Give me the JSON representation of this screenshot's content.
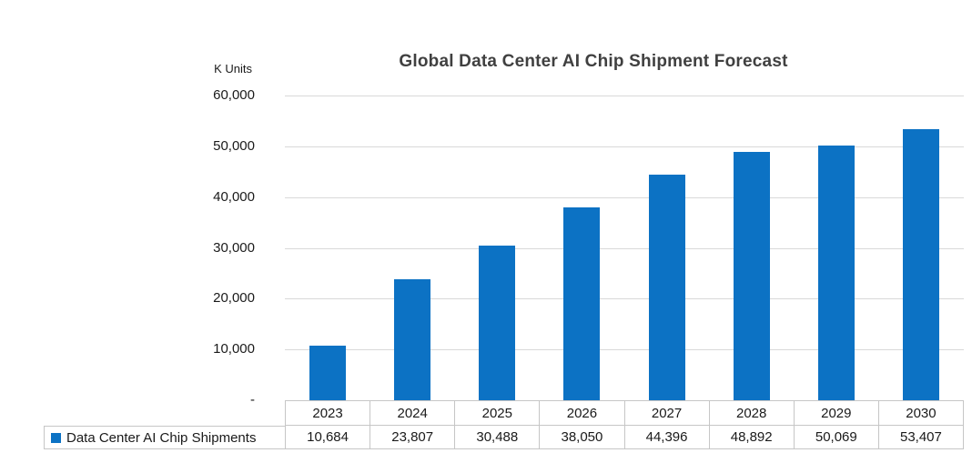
{
  "chart_data": {
    "type": "bar",
    "title": "Global Data Center AI Chip Shipment Forecast",
    "y_unit_label": "K Units",
    "categories": [
      "2023",
      "2024",
      "2025",
      "2026",
      "2027",
      "2028",
      "2029",
      "2030"
    ],
    "series": [
      {
        "name": "Data Center AI Chip Shipments",
        "values": [
          10684,
          23807,
          30488,
          38050,
          44396,
          48892,
          50069,
          53407
        ],
        "values_display": [
          "10,684",
          "23,807",
          "30,488",
          "38,050",
          "44,396",
          "48,892",
          "50,069",
          "53,407"
        ]
      }
    ],
    "xlabel": "",
    "ylabel": "K Units",
    "ylim": [
      0,
      60000
    ],
    "y_ticks": [
      0,
      10000,
      20000,
      30000,
      40000,
      50000,
      60000
    ],
    "y_tick_labels": [
      "-",
      "10,000",
      "20,000",
      "30,000",
      "40,000",
      "50,000",
      "60,000"
    ],
    "grid": true,
    "legend_position": "bottom-table"
  },
  "colors": {
    "bar": "#0C72C4",
    "title_text": "#404040",
    "axis_text": "#1A1A1A",
    "gridline": "#D9D9D9",
    "table_border": "#C6C6C6",
    "background": "#FFFFFF"
  }
}
